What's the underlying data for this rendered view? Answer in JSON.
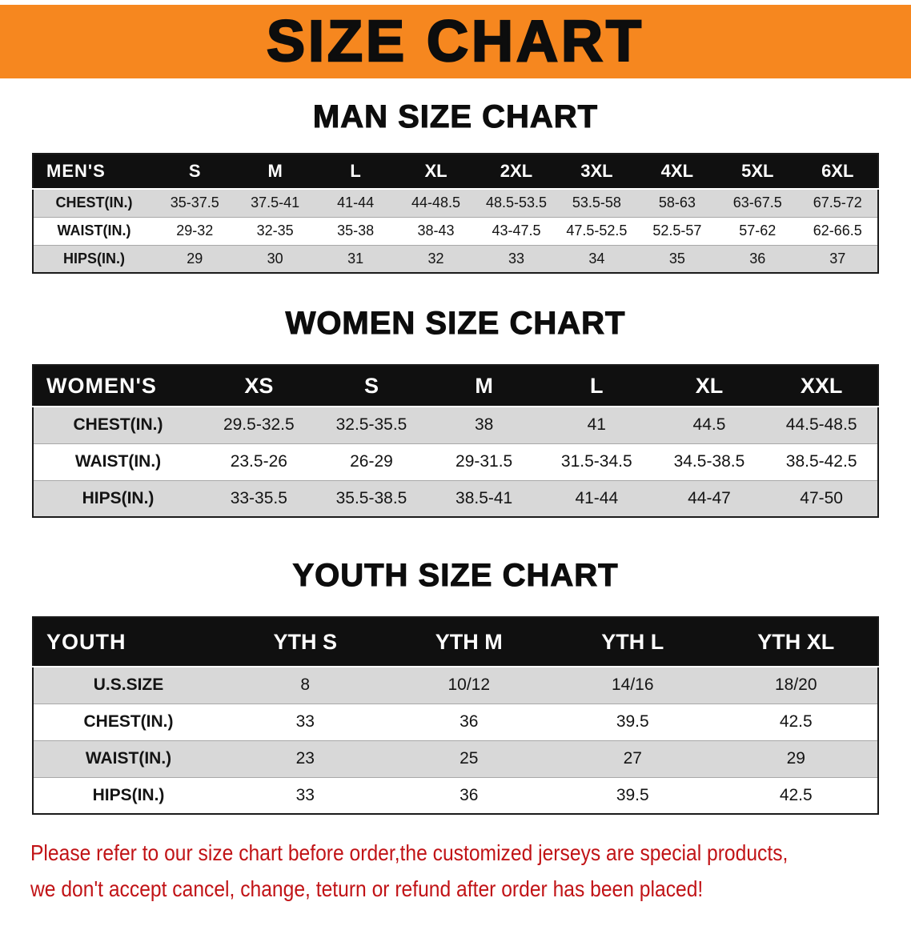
{
  "banner": {
    "title": "SIZE CHART"
  },
  "colors": {
    "banner_bg": "#f6871f",
    "table_header_bg": "#101010",
    "stripe": "#d8d8d8",
    "footer_text": "#c11316",
    "text": "#111111"
  },
  "sections": [
    {
      "id": "men",
      "heading": "MAN SIZE CHART",
      "table": {
        "header_label": "MEN'S",
        "columns": [
          "S",
          "M",
          "L",
          "XL",
          "2XL",
          "3XL",
          "4XL",
          "5XL",
          "6XL"
        ],
        "rows": [
          {
            "label": "CHEST(IN.)",
            "values": [
              "35-37.5",
              "37.5-41",
              "41-44",
              "44-48.5",
              "48.5-53.5",
              "53.5-58",
              "58-63",
              "63-67.5",
              "67.5-72"
            ]
          },
          {
            "label": "WAIST(IN.)",
            "values": [
              "29-32",
              "32-35",
              "35-38",
              "38-43",
              "43-47.5",
              "47.5-52.5",
              "52.5-57",
              "57-62",
              "62-66.5"
            ]
          },
          {
            "label": "HIPS(IN.)",
            "values": [
              "29",
              "30",
              "31",
              "32",
              "33",
              "34",
              "35",
              "36",
              "37"
            ]
          }
        ]
      }
    },
    {
      "id": "women",
      "heading": "WOMEN SIZE CHART",
      "table": {
        "header_label": "WOMEN'S",
        "columns": [
          "XS",
          "S",
          "M",
          "L",
          "XL",
          "XXL"
        ],
        "rows": [
          {
            "label": "CHEST(IN.)",
            "values": [
              "29.5-32.5",
              "32.5-35.5",
              "38",
              "41",
              "44.5",
              "44.5-48.5"
            ]
          },
          {
            "label": "WAIST(IN.)",
            "values": [
              "23.5-26",
              "26-29",
              "29-31.5",
              "31.5-34.5",
              "34.5-38.5",
              "38.5-42.5"
            ]
          },
          {
            "label": "HIPS(IN.)",
            "values": [
              "33-35.5",
              "35.5-38.5",
              "38.5-41",
              "41-44",
              "44-47",
              "47-50"
            ]
          }
        ]
      }
    },
    {
      "id": "youth",
      "heading": "YOUTH SIZE CHART",
      "table": {
        "header_label": "YOUTH",
        "columns": [
          "YTH S",
          "YTH M",
          "YTH L",
          "YTH XL"
        ],
        "rows": [
          {
            "label": "U.S.SIZE",
            "values": [
              "8",
              "10/12",
              "14/16",
              "18/20"
            ]
          },
          {
            "label": "CHEST(IN.)",
            "values": [
              "33",
              "36",
              "39.5",
              "42.5"
            ]
          },
          {
            "label": "WAIST(IN.)",
            "values": [
              "23",
              "25",
              "27",
              "29"
            ]
          },
          {
            "label": "HIPS(IN.)",
            "values": [
              "33",
              "36",
              "39.5",
              "42.5"
            ]
          }
        ]
      }
    }
  ],
  "footer": {
    "line1": "Please refer to our size chart before order,the customized jerseys are special products,",
    "line2": "we don't accept cancel, change, teturn or refund after order has been placed!"
  }
}
